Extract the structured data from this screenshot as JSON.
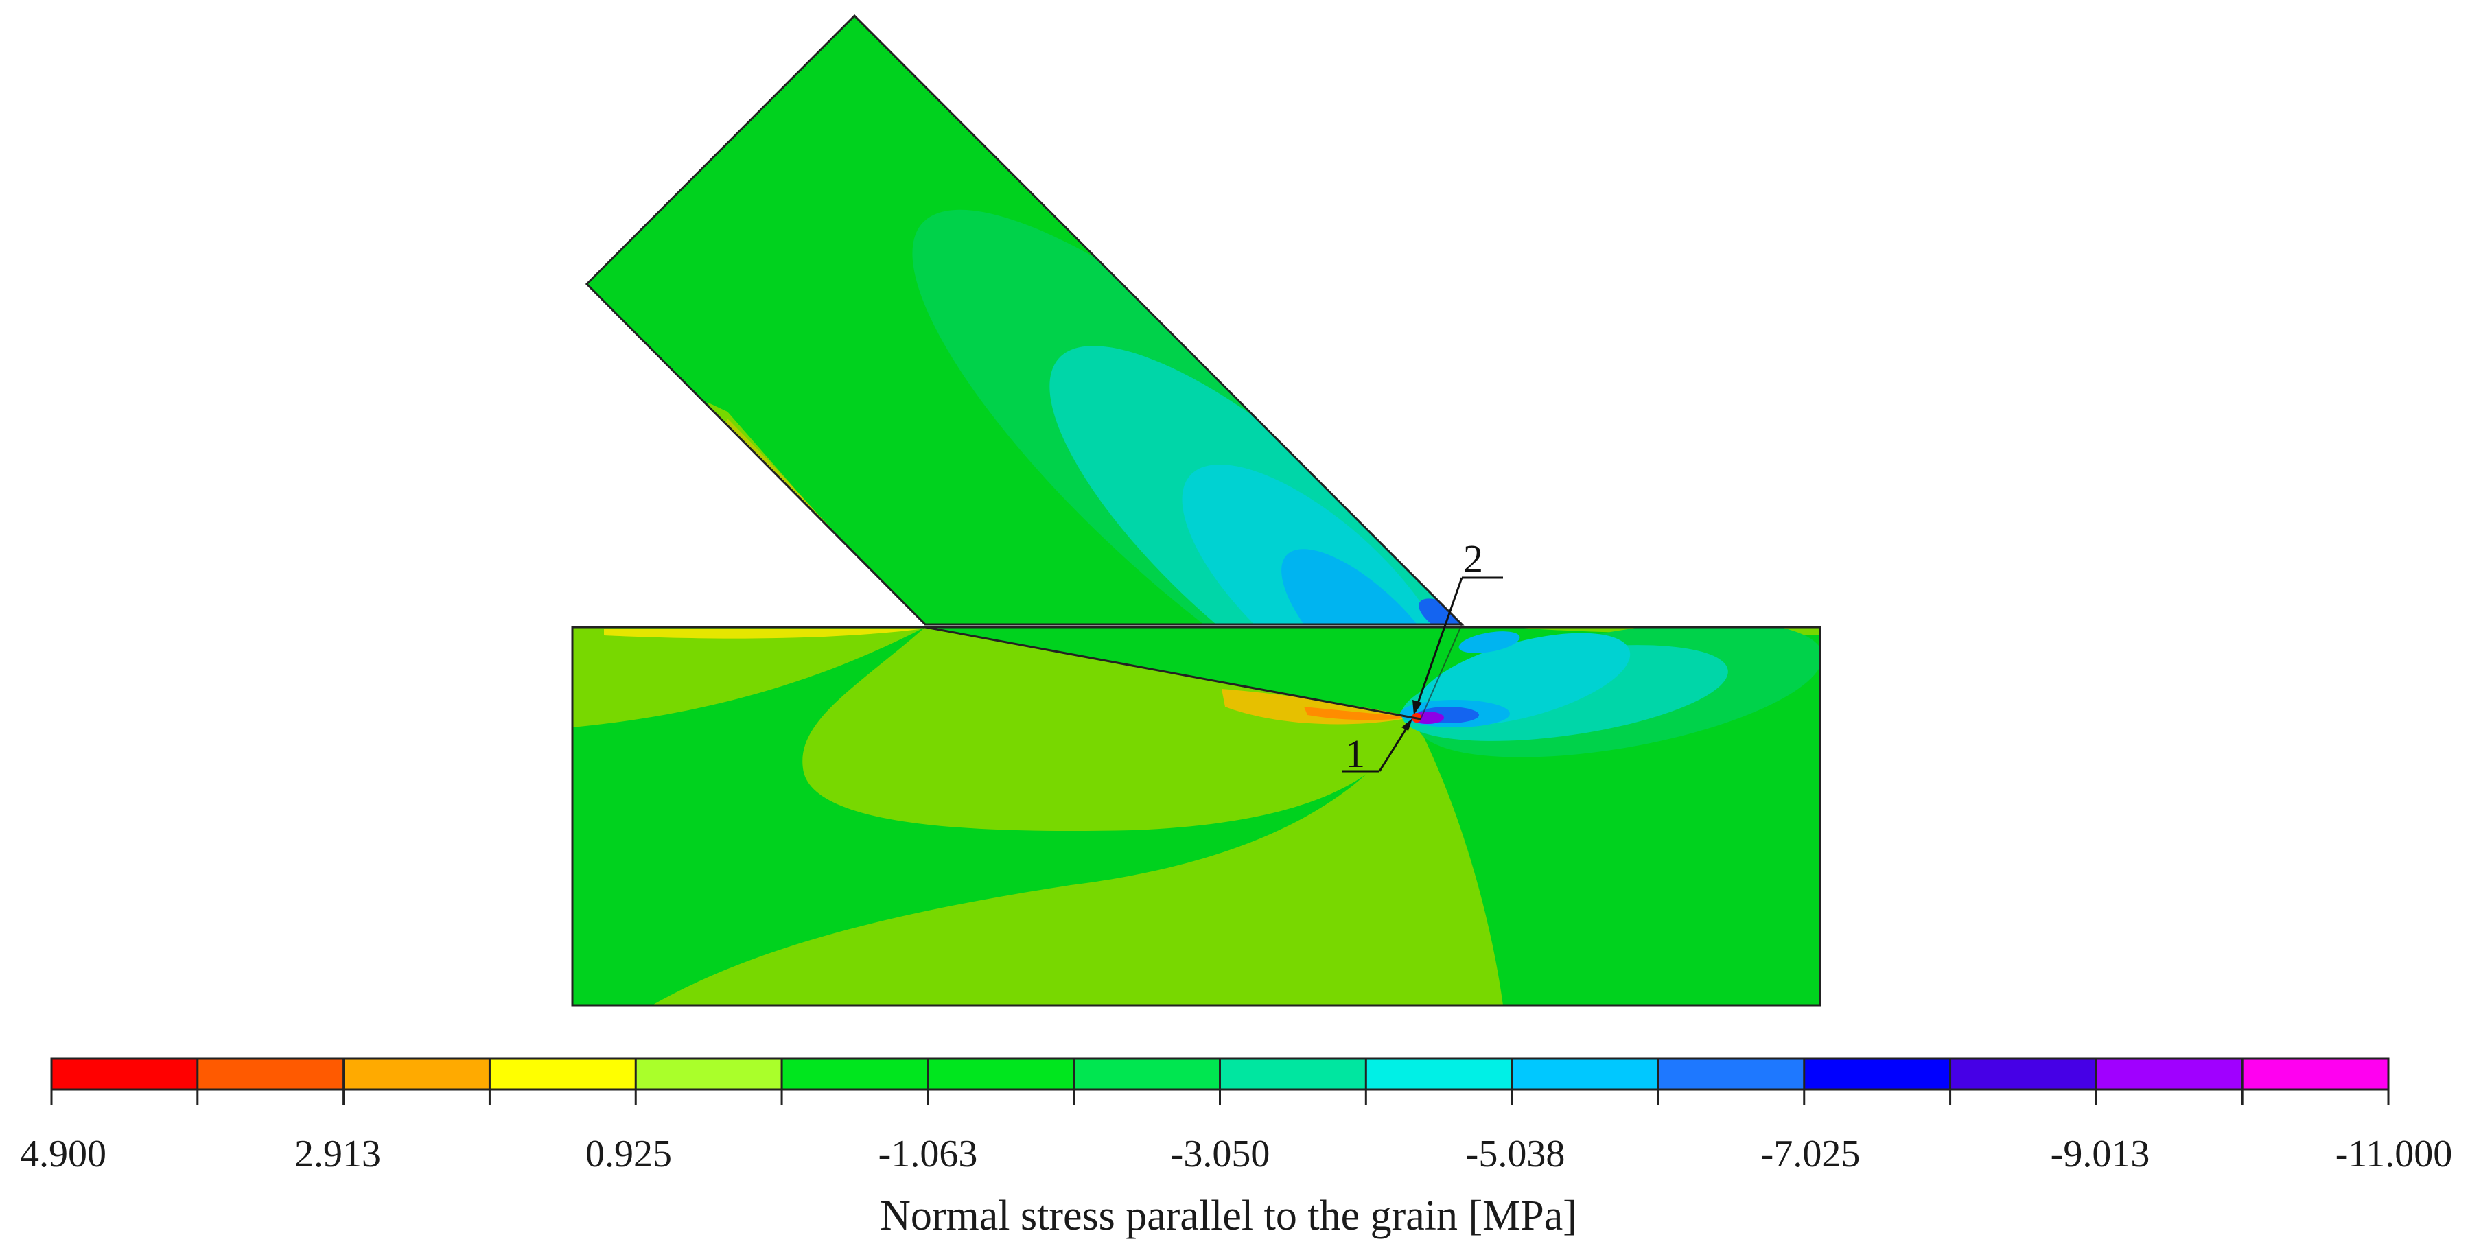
{
  "legend": {
    "title": "Normal stress parallel to the grain [MPa]",
    "tick_labels": [
      "4.900",
      "2.913",
      "0.925",
      "-1.063",
      "-3.050",
      "-5.038",
      "-7.025",
      "-9.013",
      "-11.000"
    ],
    "bands": [
      "#ff0000",
      "#ff5a00",
      "#ffaa00",
      "#ffff00",
      "#aaff2a",
      "#00e61e",
      "#00e61e",
      "#00e650",
      "#00e6a0",
      "#00f0e6",
      "#00c8ff",
      "#1e78ff",
      "#0000ff",
      "#4600e6",
      "#a000ff",
      "#ff00f0"
    ]
  },
  "callouts": [
    {
      "label": "1"
    },
    {
      "label": "2"
    }
  ],
  "colors": {
    "main_green": "#00d21e",
    "light_green": "#78d800",
    "mid_green": "#00d24a",
    "teal": "#00d6a8",
    "cyan": "#00d2d2",
    "sky": "#00b4f0",
    "blue": "#1464f0",
    "deep_blue": "#1e1ed2",
    "violet": "#8c00e6",
    "orange": "#ffaa00",
    "yellow": "#e6e600",
    "red": "#ff2800"
  }
}
